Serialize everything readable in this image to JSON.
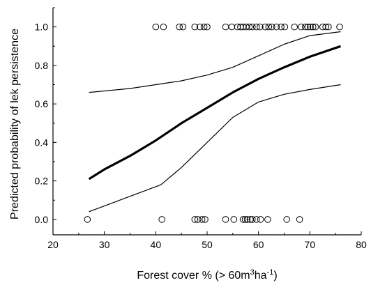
{
  "chart_data": {
    "type": "scatter",
    "title": "",
    "xlabel": "Forest cover % (> 60m",
    "xlabel_sup1": "3",
    "xlabel_mid": "ha",
    "xlabel_sup2": "-1",
    "xlabel_end": ")",
    "ylabel": "Predicted probability of lek persistence",
    "xlim": [
      20,
      80
    ],
    "ylim": [
      -0.08,
      1.1
    ],
    "xticks": [
      20,
      30,
      40,
      50,
      60,
      70,
      80
    ],
    "yticks": [
      0.0,
      0.2,
      0.4,
      0.6,
      0.8,
      1.0
    ],
    "ytick_labels": [
      "0.0",
      "0.2",
      "0.4",
      "0.6",
      "0.8",
      "1.0"
    ],
    "grid": false,
    "series": [
      {
        "role": "observed persistence",
        "marker": "open-circle",
        "x": [
          40.0,
          41.5,
          44.6,
          45.3,
          47.6,
          48.6,
          49.4,
          50.0,
          53.6,
          54.8,
          55.9,
          56.5,
          57.0,
          57.6,
          58.2,
          58.8,
          59.6,
          60.3,
          61.3,
          62.0,
          62.6,
          63.5,
          64.4,
          65.1,
          67.0,
          68.3,
          69.1,
          69.6,
          70.1,
          70.6,
          71.1,
          72.5,
          73.1,
          73.6,
          75.8
        ],
        "y": [
          1,
          1,
          1,
          1,
          1,
          1,
          1,
          1,
          1,
          1,
          1,
          1,
          1,
          1,
          1,
          1,
          1,
          1,
          1,
          1,
          1,
          1,
          1,
          1,
          1,
          1,
          1,
          1,
          1,
          1,
          1,
          1,
          1,
          1,
          1
        ]
      },
      {
        "role": "observed extinction",
        "marker": "open-circle",
        "x": [
          26.7,
          41.2,
          47.6,
          48.2,
          49.0,
          49.6,
          53.6,
          55.2,
          57.0,
          57.4,
          57.8,
          58.4,
          58.8,
          59.6,
          60.4,
          61.8,
          65.5,
          68.0
        ],
        "y": [
          0,
          0,
          0,
          0,
          0,
          0,
          0,
          0,
          0,
          0,
          0,
          0,
          0,
          0,
          0,
          0,
          0,
          0
        ]
      },
      {
        "role": "predicted",
        "style": "thick-line",
        "x": [
          27,
          30,
          35,
          40,
          45,
          50,
          55,
          60,
          65,
          70,
          76
        ],
        "y": [
          0.21,
          0.26,
          0.33,
          0.41,
          0.5,
          0.58,
          0.66,
          0.73,
          0.79,
          0.845,
          0.9
        ]
      },
      {
        "role": "upper bound",
        "style": "thin-line",
        "x": [
          27,
          35,
          40,
          45,
          50,
          55,
          60,
          65,
          70,
          76
        ],
        "y": [
          0.66,
          0.68,
          0.7,
          0.72,
          0.75,
          0.79,
          0.85,
          0.91,
          0.955,
          0.975
        ]
      },
      {
        "role": "lower bound",
        "style": "thin-line",
        "x": [
          27,
          30,
          35,
          40,
          41,
          45,
          50,
          55,
          60,
          65,
          70,
          76
        ],
        "y": [
          0.04,
          0.07,
          0.12,
          0.17,
          0.18,
          0.27,
          0.4,
          0.53,
          0.61,
          0.65,
          0.675,
          0.7
        ]
      }
    ]
  }
}
